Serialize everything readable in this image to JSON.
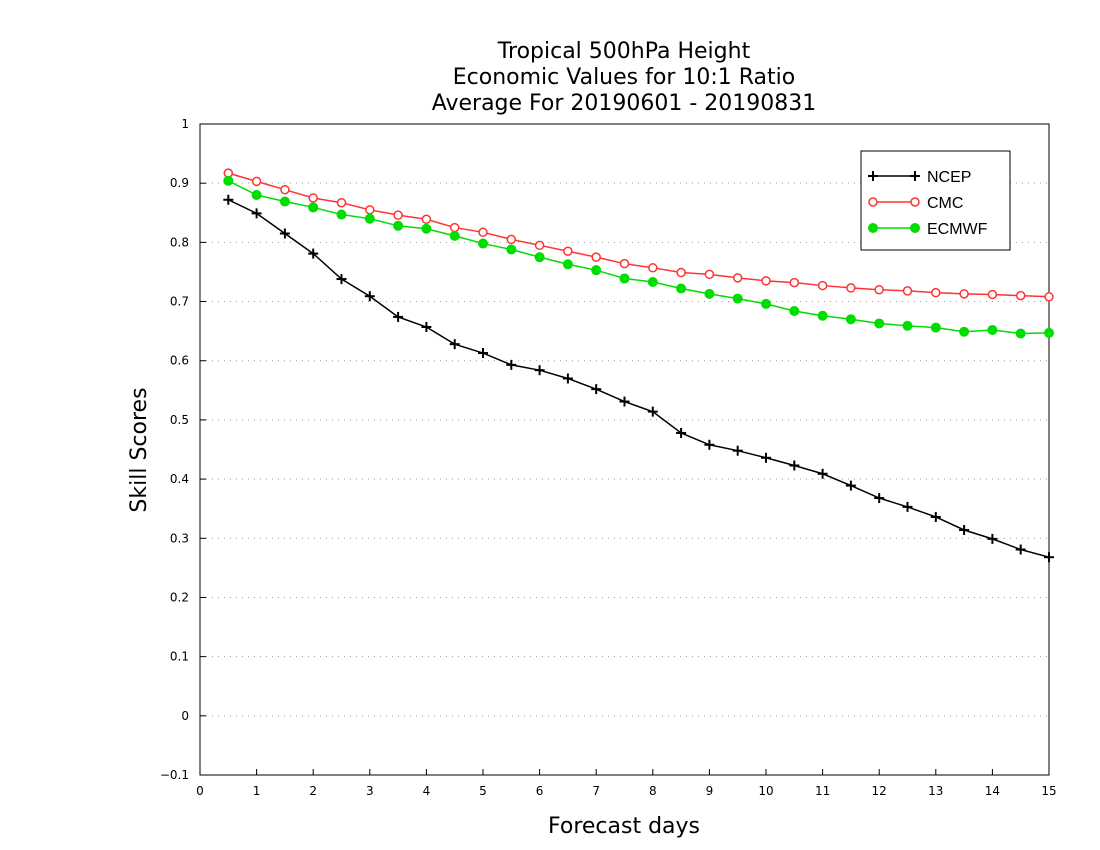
{
  "chart_data": {
    "type": "line",
    "title": [
      "Tropical 500hPa Height",
      "Economic Values for 10:1 Ratio",
      "Average For 20190601 - 20190831"
    ],
    "xlabel": "Forecast days",
    "ylabel": "Skill Scores",
    "xlim": [
      0,
      15
    ],
    "ylim": [
      -0.1,
      1
    ],
    "xticks": [
      "0",
      "1",
      "2",
      "3",
      "4",
      "5",
      "6",
      "7",
      "8",
      "9",
      "10",
      "11",
      "12",
      "13",
      "14",
      "15"
    ],
    "yticks": [
      "−0.1",
      "0",
      "0.1",
      "0.2",
      "0.3",
      "0.4",
      "0.5",
      "0.6",
      "0.7",
      "0.8",
      "0.9",
      "1"
    ],
    "grid": true,
    "legend_position": "top-right",
    "x": [
      0.5,
      1,
      1.5,
      2,
      2.5,
      3,
      3.5,
      4,
      4.5,
      5,
      5.5,
      6,
      6.5,
      7,
      7.5,
      8,
      8.5,
      9,
      9.5,
      10,
      10.5,
      11,
      11.5,
      12,
      12.5,
      13,
      13.5,
      14,
      14.5,
      15
    ],
    "series": [
      {
        "name": "NCEP",
        "color": "#000000",
        "marker": "plus",
        "values": [
          0.872,
          0.849,
          0.815,
          0.781,
          0.738,
          0.709,
          0.674,
          0.657,
          0.628,
          0.613,
          0.593,
          0.584,
          0.57,
          0.552,
          0.531,
          0.514,
          0.478,
          0.458,
          0.448,
          0.436,
          0.423,
          0.409,
          0.389,
          0.368,
          0.353,
          0.336,
          0.314,
          0.299,
          0.281,
          0.268
        ]
      },
      {
        "name": "CMC",
        "color": "#ff3333",
        "marker": "open-circle",
        "values": [
          0.917,
          0.903,
          0.889,
          0.875,
          0.867,
          0.855,
          0.846,
          0.839,
          0.825,
          0.817,
          0.805,
          0.795,
          0.785,
          0.775,
          0.764,
          0.757,
          0.749,
          0.746,
          0.74,
          0.735,
          0.732,
          0.727,
          0.723,
          0.72,
          0.718,
          0.715,
          0.713,
          0.712,
          0.71,
          0.708
        ]
      },
      {
        "name": "ECMWF",
        "color": "#00dd00",
        "marker": "filled-circle",
        "values": [
          0.904,
          0.88,
          0.869,
          0.859,
          0.847,
          0.84,
          0.828,
          0.823,
          0.811,
          0.798,
          0.788,
          0.775,
          0.763,
          0.753,
          0.739,
          0.733,
          0.722,
          0.713,
          0.705,
          0.696,
          0.684,
          0.676,
          0.67,
          0.663,
          0.659,
          0.656,
          0.649,
          0.652,
          0.646,
          0.647
        ]
      }
    ]
  }
}
